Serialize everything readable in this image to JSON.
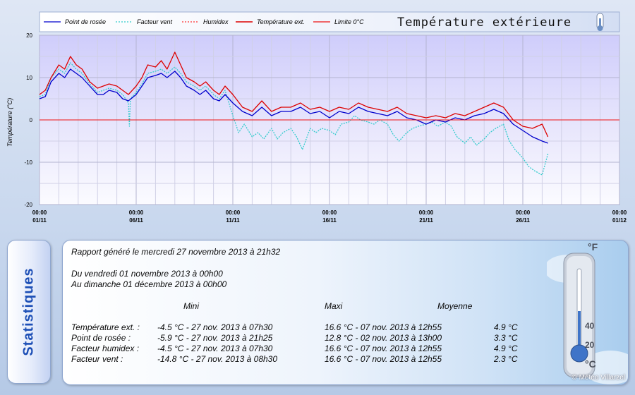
{
  "chart_data": {
    "type": "line",
    "title": "Température extérieure",
    "ylabel": "Température (°C)",
    "xlabel": "",
    "ylim": [
      -20,
      20
    ],
    "xlim": [
      0,
      30
    ],
    "y_ticks": [
      -20,
      -10,
      0,
      10,
      20
    ],
    "x_ticks": [
      {
        "x": 0,
        "time": "00:00",
        "date": "01/11"
      },
      {
        "x": 5,
        "time": "00:00",
        "date": "06/11"
      },
      {
        "x": 10,
        "time": "00:00",
        "date": "11/11"
      },
      {
        "x": 15,
        "time": "00:00",
        "date": "16/11"
      },
      {
        "x": 20,
        "time": "00:00",
        "date": "21/11"
      },
      {
        "x": 25,
        "time": "00:00",
        "date": "26/11"
      },
      {
        "x": 30,
        "time": "00:00",
        "date": "01/12"
      }
    ],
    "grid": true,
    "legend_position": "top-left",
    "series": [
      {
        "name": "Point de rosée",
        "color": "#0000cc",
        "style": "solid",
        "x": [
          0,
          0.3,
          0.6,
          1,
          1.3,
          1.6,
          1.9,
          2.2,
          2.6,
          3,
          3.3,
          3.6,
          4,
          4.3,
          4.6,
          5,
          5.3,
          5.6,
          6,
          6.3,
          6.6,
          7,
          7.3,
          7.6,
          8,
          8.3,
          8.6,
          9,
          9.3,
          9.6,
          10,
          10.5,
          11,
          11.5,
          12,
          12.5,
          13,
          13.5,
          14,
          14.5,
          15,
          15.5,
          16,
          16.5,
          17,
          17.5,
          18,
          18.5,
          19,
          19.5,
          20,
          20.5,
          21,
          21.5,
          22,
          22.5,
          23,
          23.5,
          24,
          24.5,
          25,
          25.5,
          26,
          26.3
        ],
        "values": [
          5,
          5.5,
          9,
          11,
          10,
          12,
          11,
          10,
          8,
          6,
          6,
          7,
          6.5,
          5,
          4.5,
          6,
          8,
          10,
          10.5,
          11,
          10,
          11.5,
          10,
          8,
          7,
          6,
          7,
          5,
          4.5,
          6,
          4,
          2,
          1,
          3,
          1,
          2,
          2,
          3,
          1.5,
          2,
          0.5,
          2,
          1.5,
          3,
          2,
          1.5,
          1,
          2,
          0.5,
          0,
          -1,
          0,
          -0.5,
          0.5,
          0,
          1,
          1.5,
          2.5,
          1.5,
          -1,
          -2.5,
          -4,
          -5,
          -5.5
        ]
      },
      {
        "name": "Facteur vent",
        "color": "#33cccc",
        "style": "dotted",
        "x": [
          0,
          0.3,
          0.6,
          1,
          1.3,
          1.6,
          1.9,
          2.2,
          2.6,
          3,
          3.3,
          3.6,
          4,
          4.3,
          4.6,
          4.65,
          4.7,
          5,
          5.3,
          5.6,
          6,
          6.3,
          6.6,
          7,
          7.3,
          7.6,
          8,
          8.3,
          8.6,
          9,
          9.3,
          9.6,
          10,
          10.3,
          10.6,
          11,
          11.3,
          11.6,
          12,
          12.3,
          12.6,
          13,
          13.3,
          13.6,
          14,
          14.3,
          14.6,
          15,
          15.3,
          15.6,
          16,
          16.3,
          16.6,
          17,
          17.3,
          17.6,
          18,
          18.3,
          18.6,
          19,
          19.3,
          19.6,
          20,
          20.3,
          20.6,
          21,
          21.3,
          21.6,
          22,
          22.3,
          22.6,
          23,
          23.3,
          23.6,
          24,
          24.3,
          24.6,
          25,
          25.3,
          25.6,
          26,
          26.3
        ],
        "values": [
          5.5,
          6,
          10,
          12,
          11,
          13.5,
          12,
          11,
          8.5,
          6.5,
          7,
          7.5,
          7,
          6,
          4,
          -1.5,
          5,
          6.5,
          8.5,
          11,
          11.5,
          12,
          11,
          12.5,
          11,
          9,
          8,
          7,
          8,
          6,
          5,
          7,
          1,
          -3,
          -1,
          -4,
          -3,
          -4.5,
          -2,
          -4.5,
          -3,
          -2,
          -4,
          -7,
          -2,
          -3,
          -2,
          -2.5,
          -3.5,
          -1,
          -0.5,
          1,
          0,
          -0.5,
          -1,
          0,
          -1,
          -3.5,
          -5,
          -3,
          -2,
          -1.5,
          -1,
          -0.5,
          -1.5,
          -0.5,
          -1.5,
          -4,
          -5.5,
          -4,
          -6,
          -4.5,
          -3,
          -2,
          -1,
          -5,
          -7,
          -9,
          -11,
          -12,
          -13,
          -8
        ]
      },
      {
        "name": "Humidex",
        "color": "#ff3333",
        "style": "dotted",
        "x": [],
        "values": []
      },
      {
        "name": "Température ext.",
        "color": "#dd0000",
        "style": "solid",
        "x": [
          0,
          0.3,
          0.6,
          1,
          1.3,
          1.6,
          1.9,
          2.2,
          2.6,
          3,
          3.3,
          3.6,
          4,
          4.3,
          4.6,
          5,
          5.3,
          5.6,
          6,
          6.3,
          6.6,
          7,
          7.3,
          7.6,
          8,
          8.3,
          8.6,
          9,
          9.3,
          9.6,
          10,
          10.5,
          11,
          11.5,
          12,
          12.5,
          13,
          13.5,
          14,
          14.5,
          15,
          15.5,
          16,
          16.5,
          17,
          17.5,
          18,
          18.5,
          19,
          19.5,
          20,
          20.5,
          21,
          21.5,
          22,
          22.5,
          23,
          23.5,
          24,
          24.5,
          25,
          25.5,
          26,
          26.3
        ],
        "values": [
          6,
          7,
          10,
          13,
          12,
          15,
          13,
          12,
          9,
          7.5,
          8,
          8.5,
          8,
          7,
          6,
          8,
          10,
          13,
          12.5,
          14,
          12,
          16,
          13,
          10,
          9,
          8,
          9,
          7,
          6,
          8,
          6,
          3,
          2,
          4.5,
          2,
          3,
          3,
          4,
          2.5,
          3,
          2,
          3,
          2.5,
          4,
          3,
          2.5,
          2,
          3,
          1.5,
          1,
          0.5,
          1,
          0.5,
          1.5,
          1,
          2,
          3,
          4,
          3,
          0,
          -1.5,
          -2,
          -1,
          -4
        ]
      },
      {
        "name": "Limite 0°C",
        "color": "#ee1111",
        "style": "solid",
        "x": [
          0,
          30
        ],
        "values": [
          0,
          0
        ]
      }
    ]
  },
  "stats": {
    "tab_label": "Statistiques",
    "report_line": "Rapport généré le mercredi 27 novembre 2013 à 21h32",
    "from_line": "Du vendredi 01 novembre 2013 à 00h00",
    "to_line": "Au dimanche 01 décembre 2013 à 00h00",
    "headers": {
      "mini": "Mini",
      "maxi": "Maxi",
      "moyenne": "Moyenne"
    },
    "rows": [
      {
        "label": "Température ext. :",
        "mini": "-4.5 °C - 27 nov. 2013 à 07h30",
        "maxi": "16.6 °C - 07 nov. 2013 à 12h55",
        "moyenne": "4.9 °C"
      },
      {
        "label": "Point de rosée :",
        "mini": "-5.9 °C - 27 nov. 2013 à 21h25",
        "maxi": "12.8 °C - 02 nov. 2013 à 13h00",
        "moyenne": "3.3 °C"
      },
      {
        "label": "Facteur humidex :",
        "mini": "-4.5 °C - 27 nov. 2013 à 07h30",
        "maxi": "16.6 °C - 07 nov. 2013 à 12h55",
        "moyenne": "4.9 °C"
      },
      {
        "label": "Facteur vent :",
        "mini": "-14.8 °C - 27 nov. 2013 à 08h30",
        "maxi": "16.6 °C - 07 nov. 2013 à 12h55",
        "moyenne": "2.3 °C"
      }
    ],
    "copyright": "© Météo Villarzel",
    "thermometer_labels": {
      "t40": "40",
      "t20": "20",
      "unit_f": "°F",
      "unit_c": "°C"
    }
  }
}
